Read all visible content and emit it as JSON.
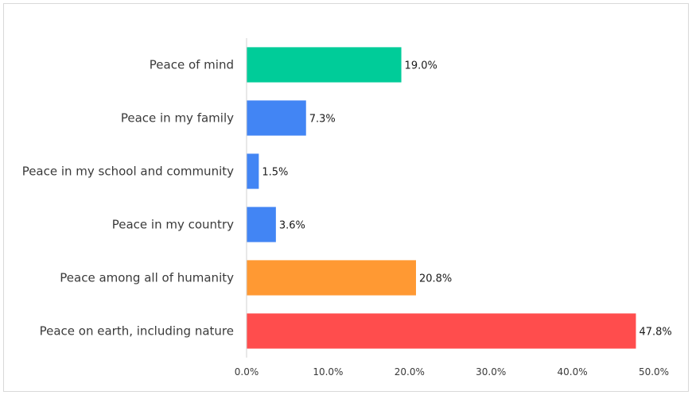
{
  "chart_data": {
    "type": "bar",
    "orientation": "horizontal",
    "categories": [
      "Peace of mind",
      "Peace in my family",
      "Peace in my school and community",
      "Peace in my country",
      "Peace among all of humanity",
      "Peace on earth, including nature"
    ],
    "values": [
      19.0,
      7.3,
      1.5,
      3.6,
      20.8,
      47.8
    ],
    "value_labels": [
      "19.0%",
      "7.3%",
      "1.5%",
      "3.6%",
      "20.8%",
      "47.8%"
    ],
    "colors": [
      "#00cc99",
      "#4285f4",
      "#4285f4",
      "#4285f4",
      "#ff9933",
      "#ff4d4d"
    ],
    "xlim": [
      0,
      50
    ],
    "x_ticks": [
      "0.0%",
      "10.0%",
      "20.0%",
      "30.0%",
      "40.0%",
      "50.0%"
    ],
    "title": "",
    "xlabel": "",
    "ylabel": "",
    "grid": false,
    "legend": "none"
  }
}
